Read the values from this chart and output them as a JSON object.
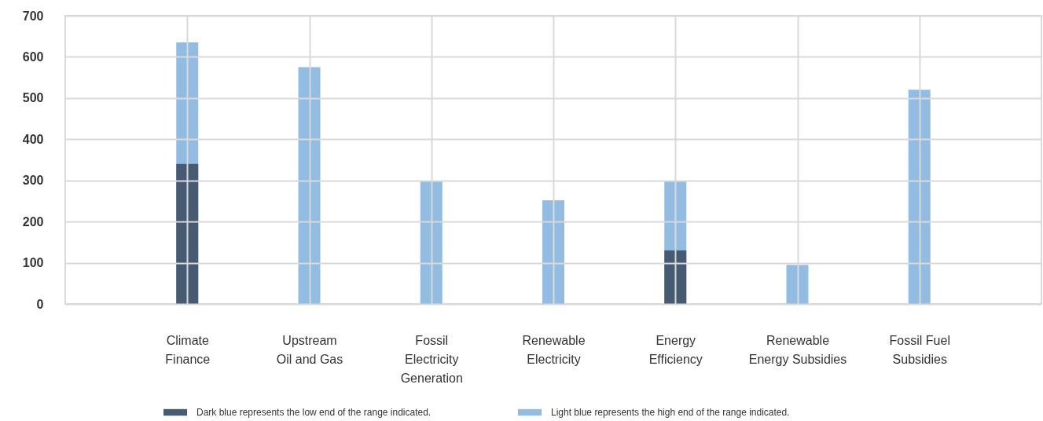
{
  "chart_data": {
    "type": "bar",
    "categories": [
      "Climate\nFinance",
      "Upstream\nOil and Gas",
      "Fossil\nElectricity\nGeneration",
      "Renewable\nElectricity",
      "Energy\nEfficiency",
      "Renewable\nEnergy Subsidies",
      "Fossil Fuel\nSubsidies"
    ],
    "series": [
      {
        "name": "Dark blue represents the low end of the range indicated.",
        "color": "#465b71",
        "values": [
          340,
          null,
          null,
          null,
          130,
          null,
          null
        ]
      },
      {
        "name": "Light blue represents the high end of the range indicated.",
        "color": "#93bce2",
        "values": [
          635,
          575,
          298,
          252,
          298,
          95,
          520
        ]
      }
    ],
    "ylim": [
      0,
      700
    ],
    "yticks": [
      0,
      100,
      200,
      300,
      400,
      500,
      600,
      700
    ],
    "grid": true,
    "legend": "bottom"
  }
}
